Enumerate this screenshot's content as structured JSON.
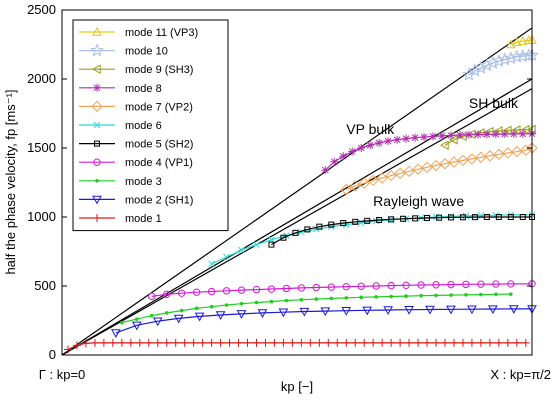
{
  "chart_data": {
    "type": "line",
    "title": "",
    "xlabel": "kp  [−]",
    "ylabel": "half the phase velocity, fp [ms⁻¹]",
    "x_tick_labels": [
      "Γ : kp=0",
      "X : kp=π/2"
    ],
    "x_tick_values": [
      0,
      1.5708
    ],
    "xlim": [
      0,
      1.5708
    ],
    "ylim": [
      0,
      2500
    ],
    "yticks": [
      0,
      500,
      1000,
      1500,
      2000,
      2500
    ],
    "legend_position": "top-left",
    "grid": false,
    "annotations": [
      {
        "text": "VP bulk",
        "x": 0.95,
        "y": 1600
      },
      {
        "text": "SH bulk",
        "x": 1.36,
        "y": 1790
      },
      {
        "text": "Rayleigh wave",
        "x": 1.04,
        "y": 1080
      }
    ],
    "reference_lines": [
      {
        "label": "VP bulk",
        "x": [
          0,
          1.5708
        ],
        "y": [
          0,
          2370
        ]
      },
      {
        "label": "SH bulk",
        "x": [
          0,
          1.5708
        ],
        "y": [
          0,
          2000
        ]
      },
      {
        "label": "Rayleigh wave",
        "x": [
          0,
          1.5708
        ],
        "y": [
          0,
          1930
        ]
      }
    ],
    "series": [
      {
        "name": "mode 11 (VP3)",
        "color": "#e6c619",
        "marker": "triangle-up",
        "x": [
          1.5,
          1.52,
          1.54,
          1.56,
          1.5708
        ],
        "y": [
          2250,
          2265,
          2275,
          2280,
          2282
        ]
      },
      {
        "name": "mode 10",
        "color": "#a9bfe6",
        "marker": "star",
        "x": [
          1.36,
          1.38,
          1.4,
          1.42,
          1.44,
          1.46,
          1.48,
          1.5,
          1.52,
          1.54,
          1.56,
          1.5708
        ],
        "y": [
          2030,
          2060,
          2080,
          2100,
          2115,
          2130,
          2140,
          2150,
          2160,
          2165,
          2170,
          2172
        ]
      },
      {
        "name": "mode 9 (SH3)",
        "color": "#9e9e1a",
        "marker": "triangle-left",
        "x": [
          1.28,
          1.31,
          1.34,
          1.37,
          1.4,
          1.43,
          1.46,
          1.49,
          1.52,
          1.55,
          1.5708
        ],
        "y": [
          1520,
          1560,
          1585,
          1600,
          1610,
          1618,
          1624,
          1628,
          1631,
          1633,
          1634
        ]
      },
      {
        "name": "mode 8",
        "color": "#b02fb0",
        "marker": "asterisk",
        "x": [
          0.88,
          0.91,
          0.94,
          0.97,
          1.0,
          1.03,
          1.06,
          1.09,
          1.12,
          1.15,
          1.18,
          1.21,
          1.24,
          1.27,
          1.3,
          1.33,
          1.36,
          1.39,
          1.42,
          1.45,
          1.48,
          1.51,
          1.54,
          1.5708
        ],
        "y": [
          1340,
          1400,
          1440,
          1475,
          1500,
          1520,
          1537,
          1550,
          1560,
          1568,
          1575,
          1580,
          1584,
          1588,
          1591,
          1594,
          1596,
          1598,
          1599,
          1600,
          1601,
          1602,
          1602,
          1603
        ]
      },
      {
        "name": "mode 7 (VP2)",
        "color": "#f0a45a",
        "marker": "diamond",
        "x": [
          0.95,
          0.98,
          1.01,
          1.04,
          1.07,
          1.1,
          1.13,
          1.16,
          1.19,
          1.22,
          1.25,
          1.28,
          1.31,
          1.34,
          1.37,
          1.4,
          1.43,
          1.46,
          1.49,
          1.52,
          1.55,
          1.5708
        ],
        "y": [
          1200,
          1225,
          1245,
          1265,
          1283,
          1300,
          1316,
          1331,
          1346,
          1360,
          1373,
          1386,
          1398,
          1410,
          1421,
          1432,
          1443,
          1454,
          1464,
          1474,
          1484,
          1500
        ]
      },
      {
        "name": "mode 6",
        "color": "#2fd8d8",
        "marker": "x",
        "x": [
          0.5,
          0.55,
          0.6,
          0.65,
          0.7,
          0.75,
          0.8,
          0.85,
          0.9,
          0.95,
          1.0,
          1.05,
          1.1,
          1.15,
          1.2,
          1.25,
          1.3,
          1.35,
          1.4,
          1.45,
          1.5,
          1.5708
        ],
        "y": [
          660,
          710,
          760,
          800,
          835,
          865,
          890,
          912,
          930,
          945,
          958,
          970,
          980,
          988,
          994,
          1000,
          1004,
          1008,
          1011,
          1013,
          1015,
          1016
        ]
      },
      {
        "name": "mode 5 (SH2)",
        "color": "#000000",
        "marker": "square",
        "x": [
          0.7,
          0.74,
          0.78,
          0.82,
          0.86,
          0.9,
          0.94,
          0.98,
          1.02,
          1.06,
          1.1,
          1.14,
          1.18,
          1.22,
          1.26,
          1.3,
          1.34,
          1.38,
          1.42,
          1.46,
          1.5,
          1.54,
          1.5708
        ],
        "y": [
          800,
          850,
          885,
          910,
          930,
          945,
          956,
          965,
          972,
          978,
          983,
          987,
          990,
          993,
          995,
          997,
          998,
          999,
          1000,
          1000,
          1000,
          1000,
          1000
        ]
      },
      {
        "name": "mode 4 (VP1)",
        "color": "#d719d7",
        "marker": "circle",
        "x": [
          0.3,
          0.35,
          0.4,
          0.45,
          0.5,
          0.55,
          0.6,
          0.65,
          0.7,
          0.75,
          0.8,
          0.85,
          0.9,
          0.95,
          1.0,
          1.05,
          1.1,
          1.15,
          1.2,
          1.25,
          1.3,
          1.35,
          1.4,
          1.45,
          1.5,
          1.5708
        ],
        "y": [
          425,
          440,
          448,
          455,
          460,
          465,
          470,
          474,
          478,
          482,
          486,
          489,
          492,
          495,
          498,
          500,
          503,
          505,
          507,
          509,
          510,
          512,
          513,
          514,
          515,
          516
        ]
      },
      {
        "name": "mode 3",
        "color": "#1fcf1f",
        "marker": "dot",
        "x": [
          0.2,
          0.25,
          0.3,
          0.35,
          0.4,
          0.45,
          0.5,
          0.55,
          0.6,
          0.65,
          0.7,
          0.75,
          0.8,
          0.85,
          0.9,
          0.95,
          1.0,
          1.05,
          1.1,
          1.15,
          1.2,
          1.25,
          1.3,
          1.35,
          1.4,
          1.45,
          1.5
        ],
        "y": [
          235,
          260,
          285,
          305,
          322,
          338,
          350,
          362,
          372,
          380,
          388,
          395,
          400,
          405,
          410,
          414,
          418,
          421,
          424,
          427,
          430,
          432,
          434,
          436,
          438,
          440,
          441
        ]
      },
      {
        "name": "mode 2 (SH1)",
        "color": "#1a1ad6",
        "marker": "triangle-down",
        "x": [
          0.18,
          0.25,
          0.32,
          0.39,
          0.46,
          0.53,
          0.6,
          0.67,
          0.74,
          0.81,
          0.88,
          0.95,
          1.02,
          1.09,
          1.16,
          1.23,
          1.3,
          1.37,
          1.44,
          1.51,
          1.5708
        ],
        "y": [
          160,
          215,
          245,
          265,
          280,
          290,
          298,
          305,
          310,
          315,
          318,
          321,
          324,
          326,
          328,
          330,
          331,
          332,
          333,
          334,
          334
        ]
      },
      {
        "name": "mode 1",
        "color": "#e01a1a",
        "marker": "plus",
        "x": [
          0.02,
          0.05,
          0.08,
          0.11,
          0.14,
          0.17,
          0.2,
          0.23,
          0.26,
          0.29,
          0.32,
          0.35,
          0.38,
          0.41,
          0.44,
          0.47,
          0.5,
          0.53,
          0.56,
          0.59,
          0.62,
          0.65,
          0.68,
          0.71,
          0.74,
          0.77,
          0.8,
          0.83,
          0.86,
          0.89,
          0.92,
          0.95,
          0.98,
          1.01,
          1.04,
          1.07,
          1.1,
          1.13,
          1.16,
          1.19,
          1.22,
          1.25,
          1.28,
          1.31,
          1.34,
          1.37,
          1.4,
          1.43,
          1.46,
          1.49,
          1.52,
          1.55
        ],
        "y": [
          40,
          70,
          85,
          88,
          88,
          88,
          88,
          88,
          88,
          88,
          88,
          88,
          88,
          88,
          88,
          88,
          88,
          88,
          88,
          88,
          88,
          88,
          88,
          88,
          88,
          88,
          88,
          88,
          88,
          88,
          88,
          88,
          88,
          88,
          88,
          88,
          88,
          88,
          88,
          88,
          88,
          88,
          88,
          88,
          88,
          88,
          88,
          88,
          88,
          88,
          88,
          88
        ]
      }
    ]
  }
}
